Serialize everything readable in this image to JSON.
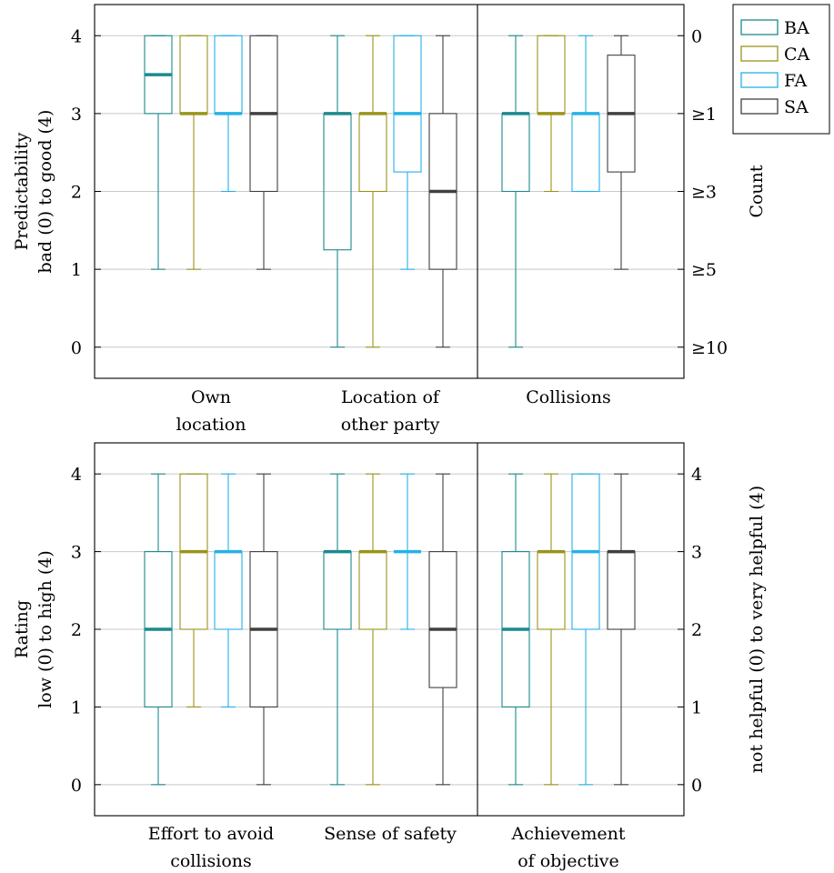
{
  "legend": {
    "items": [
      {
        "name": "BA",
        "color": "#1b8a8e"
      },
      {
        "name": "CA",
        "color": "#9a9418"
      },
      {
        "name": "FA",
        "color": "#25b1e6"
      },
      {
        "name": "SA",
        "color": "#404040"
      }
    ]
  },
  "chart_data": [
    {
      "type": "box",
      "ylim": [
        -0.4,
        4.4
      ],
      "yticks": [
        "0",
        "1",
        "2",
        "3",
        "4"
      ],
      "ylabel_lines": [
        "Predictability",
        "bad (0) to good (4)"
      ],
      "right_ylabel_lines": [
        "Count"
      ],
      "right_ticks": [
        "≥10",
        "≥5",
        "≥3",
        "≥1",
        "0"
      ],
      "series_names": [
        "BA",
        "CA",
        "FA",
        "SA"
      ],
      "groups": [
        {
          "label_lines": [
            "Own",
            "location"
          ],
          "boxes": [
            {
              "series": "BA",
              "min": 1,
              "q1": 3,
              "median": 3.5,
              "q3": 4,
              "max": 4
            },
            {
              "series": "CA",
              "min": 1,
              "q1": 3,
              "median": 3,
              "q3": 4,
              "max": 4
            },
            {
              "series": "FA",
              "min": 2,
              "q1": 3,
              "median": 3,
              "q3": 4,
              "max": 4
            },
            {
              "series": "SA",
              "min": 1,
              "q1": 2,
              "median": 3,
              "q3": 4,
              "max": 4
            }
          ]
        },
        {
          "label_lines": [
            "Location of",
            "other party"
          ],
          "boxes": [
            {
              "series": "BA",
              "min": 0,
              "q1": 1.25,
              "median": 3,
              "q3": 3,
              "max": 4
            },
            {
              "series": "CA",
              "min": 0,
              "q1": 2,
              "median": 3,
              "q3": 3,
              "max": 4
            },
            {
              "series": "FA",
              "min": 1,
              "q1": 2.25,
              "median": 3,
              "q3": 4,
              "max": 4
            },
            {
              "series": "SA",
              "min": 0,
              "q1": 1,
              "median": 2,
              "q3": 3,
              "max": 4
            }
          ]
        },
        {
          "label_lines": [
            "Collisions"
          ],
          "boxes": [
            {
              "series": "BA",
              "min": 0,
              "q1": 2,
              "median": 3,
              "q3": 3,
              "max": 4
            },
            {
              "series": "CA",
              "min": 2,
              "q1": 3,
              "median": 3,
              "q3": 4,
              "max": 4
            },
            {
              "series": "FA",
              "min": 2,
              "q1": 2,
              "median": 3,
              "q3": 3,
              "max": 4
            },
            {
              "series": "SA",
              "min": 1,
              "q1": 2.25,
              "median": 3,
              "q3": 3.75,
              "max": 4
            }
          ]
        }
      ]
    },
    {
      "type": "box",
      "ylim": [
        -0.4,
        4.4
      ],
      "yticks": [
        "0",
        "1",
        "2",
        "3",
        "4"
      ],
      "ylabel_lines": [
        "Rating",
        "low (0) to high (4)"
      ],
      "right_ylabel_lines": [
        "not helpful (0) to very helpful (4)"
      ],
      "right_ticks": [
        "0",
        "1",
        "2",
        "3",
        "4"
      ],
      "series_names": [
        "BA",
        "CA",
        "FA",
        "SA"
      ],
      "groups": [
        {
          "label_lines": [
            "Effort to avoid",
            "collisions"
          ],
          "boxes": [
            {
              "series": "BA",
              "min": 0,
              "q1": 1,
              "median": 2,
              "q3": 3,
              "max": 4
            },
            {
              "series": "CA",
              "min": 1,
              "q1": 2,
              "median": 3,
              "q3": 4,
              "max": 4
            },
            {
              "series": "FA",
              "min": 1,
              "q1": 2,
              "median": 3,
              "q3": 3,
              "max": 4
            },
            {
              "series": "SA",
              "min": 0,
              "q1": 1,
              "median": 2,
              "q3": 3,
              "max": 4
            }
          ]
        },
        {
          "label_lines": [
            "Sense of safety"
          ],
          "boxes": [
            {
              "series": "BA",
              "min": 0,
              "q1": 2,
              "median": 3,
              "q3": 3,
              "max": 4
            },
            {
              "series": "CA",
              "min": 0,
              "q1": 2,
              "median": 3,
              "q3": 3,
              "max": 4
            },
            {
              "series": "FA",
              "min": 2,
              "q1": 3,
              "median": 3,
              "q3": 3,
              "max": 4
            },
            {
              "series": "SA",
              "min": 0,
              "q1": 1.25,
              "median": 2,
              "q3": 3,
              "max": 4
            }
          ]
        },
        {
          "label_lines": [
            "Achievement",
            "of objective"
          ],
          "boxes": [
            {
              "series": "BA",
              "min": 0,
              "q1": 1,
              "median": 2,
              "q3": 3,
              "max": 4
            },
            {
              "series": "CA",
              "min": 0,
              "q1": 2,
              "median": 3,
              "q3": 3,
              "max": 4
            },
            {
              "series": "FA",
              "min": 0,
              "q1": 2,
              "median": 3,
              "q3": 4,
              "max": 4
            },
            {
              "series": "SA",
              "min": 0,
              "q1": 2,
              "median": 3,
              "q3": 3,
              "max": 4
            }
          ]
        }
      ]
    }
  ]
}
